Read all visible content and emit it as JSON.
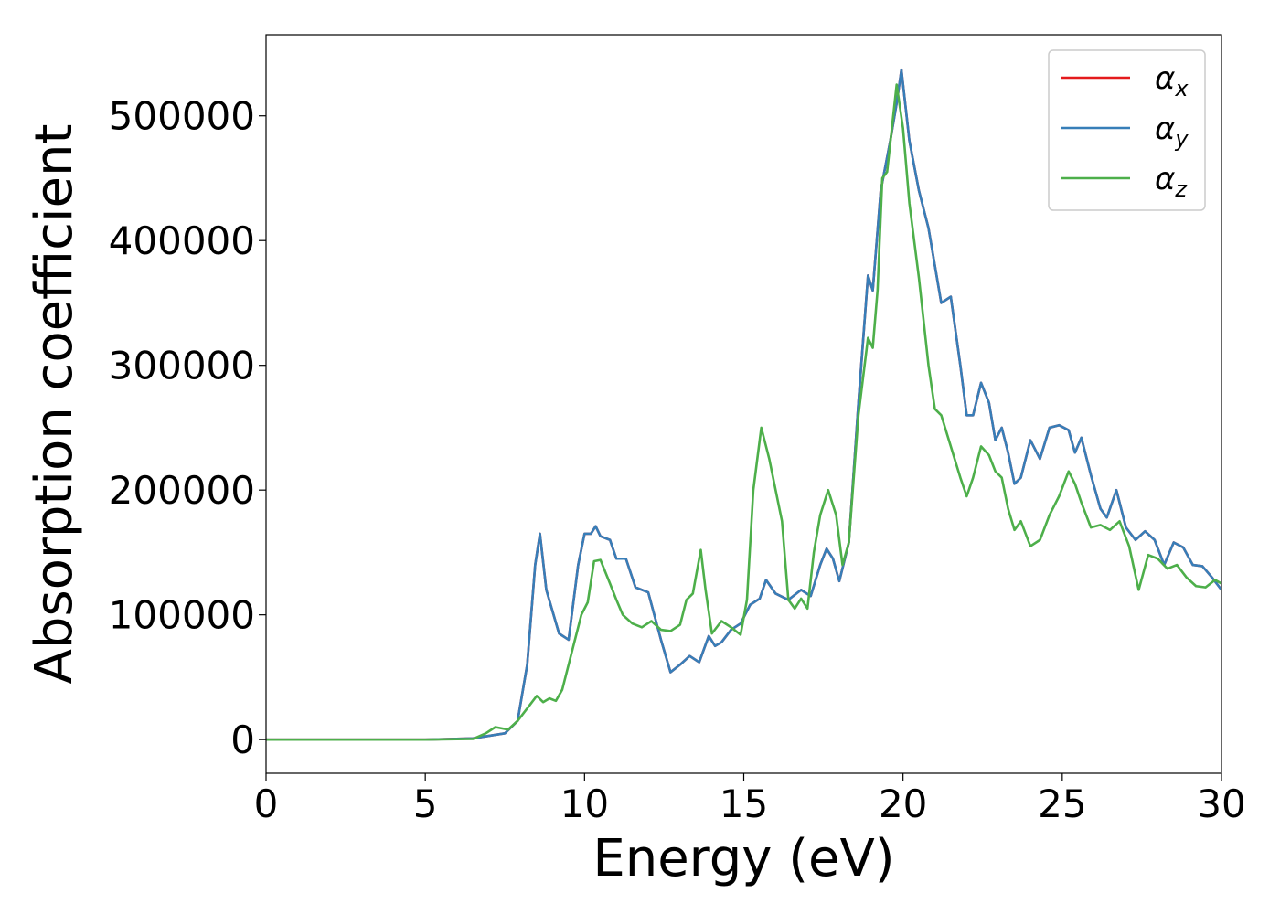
{
  "chart_data": {
    "type": "line",
    "title": "",
    "xlabel": "Energy (eV)",
    "ylabel": "Absorption coefficient",
    "xlim": [
      0,
      30
    ],
    "ylim": [
      -27000,
      565000
    ],
    "xticks": [
      0,
      5,
      10,
      15,
      20,
      25,
      30
    ],
    "yticks": [
      0,
      100000,
      200000,
      300000,
      400000,
      500000
    ],
    "grid": false,
    "legend_position": "top-right",
    "series": [
      {
        "name": "α_x",
        "legend_symbol": "α",
        "legend_sub": "x",
        "color": "#e41a1c",
        "x": [
          0,
          5,
          6.5,
          7.5,
          7.9,
          8.2,
          8.45,
          8.6,
          8.8,
          9.2,
          9.5,
          9.8,
          10.0,
          10.2,
          10.35,
          10.5,
          10.8,
          11.0,
          11.3,
          11.6,
          12.0,
          12.4,
          12.7,
          13.0,
          13.3,
          13.6,
          13.9,
          14.1,
          14.3,
          14.6,
          14.9,
          15.2,
          15.5,
          15.7,
          16.0,
          16.4,
          16.8,
          17.1,
          17.4,
          17.6,
          17.8,
          18.0,
          18.3,
          18.6,
          18.9,
          19.05,
          19.3,
          19.6,
          19.8,
          19.95,
          20.2,
          20.5,
          20.8,
          21.0,
          21.2,
          21.5,
          21.8,
          22.0,
          22.2,
          22.45,
          22.7,
          22.9,
          23.1,
          23.3,
          23.5,
          23.7,
          24.0,
          24.3,
          24.6,
          24.9,
          25.2,
          25.4,
          25.6,
          25.9,
          26.2,
          26.4,
          26.7,
          27.0,
          27.3,
          27.6,
          27.9,
          28.2,
          28.5,
          28.8,
          29.1,
          29.4,
          29.7,
          30
        ],
        "y": [
          0,
          0,
          1000,
          5000,
          15000,
          60000,
          140000,
          165000,
          120000,
          85000,
          80000,
          140000,
          165000,
          165000,
          171000,
          163000,
          160000,
          145000,
          145000,
          122000,
          118000,
          80000,
          54000,
          60000,
          67000,
          62000,
          83000,
          75000,
          78000,
          88000,
          93000,
          108000,
          113000,
          128000,
          117000,
          112000,
          120000,
          115000,
          140000,
          153000,
          145000,
          127000,
          158000,
          270000,
          372000,
          360000,
          440000,
          480000,
          510000,
          537000,
          480000,
          440000,
          410000,
          380000,
          350000,
          355000,
          300000,
          260000,
          260000,
          286000,
          270000,
          240000,
          250000,
          230000,
          205000,
          210000,
          240000,
          225000,
          250000,
          252000,
          248000,
          230000,
          242000,
          212000,
          185000,
          178000,
          200000,
          170000,
          160000,
          167000,
          160000,
          140000,
          158000,
          154000,
          140000,
          139000,
          130000,
          120000
        ]
      },
      {
        "name": "α_y",
        "legend_symbol": "α",
        "legend_sub": "y",
        "color": "#377eb8",
        "x": [
          0,
          5,
          6.5,
          7.5,
          7.9,
          8.2,
          8.45,
          8.6,
          8.8,
          9.2,
          9.5,
          9.8,
          10.0,
          10.2,
          10.35,
          10.5,
          10.8,
          11.0,
          11.3,
          11.6,
          12.0,
          12.4,
          12.7,
          13.0,
          13.3,
          13.6,
          13.9,
          14.1,
          14.3,
          14.6,
          14.9,
          15.2,
          15.5,
          15.7,
          16.0,
          16.4,
          16.8,
          17.1,
          17.4,
          17.6,
          17.8,
          18.0,
          18.3,
          18.6,
          18.9,
          19.05,
          19.3,
          19.6,
          19.8,
          19.95,
          20.2,
          20.5,
          20.8,
          21.0,
          21.2,
          21.5,
          21.8,
          22.0,
          22.2,
          22.45,
          22.7,
          22.9,
          23.1,
          23.3,
          23.5,
          23.7,
          24.0,
          24.3,
          24.6,
          24.9,
          25.2,
          25.4,
          25.6,
          25.9,
          26.2,
          26.4,
          26.7,
          27.0,
          27.3,
          27.6,
          27.9,
          28.2,
          28.5,
          28.8,
          29.1,
          29.4,
          29.7,
          30
        ],
        "y": [
          0,
          0,
          1000,
          5000,
          15000,
          60000,
          140000,
          165000,
          120000,
          85000,
          80000,
          140000,
          165000,
          165000,
          171000,
          163000,
          160000,
          145000,
          145000,
          122000,
          118000,
          80000,
          54000,
          60000,
          67000,
          62000,
          83000,
          75000,
          78000,
          88000,
          93000,
          108000,
          113000,
          128000,
          117000,
          112000,
          120000,
          115000,
          140000,
          153000,
          145000,
          127000,
          158000,
          270000,
          372000,
          360000,
          440000,
          480000,
          510000,
          537000,
          480000,
          440000,
          410000,
          380000,
          350000,
          355000,
          300000,
          260000,
          260000,
          286000,
          270000,
          240000,
          250000,
          230000,
          205000,
          210000,
          240000,
          225000,
          250000,
          252000,
          248000,
          230000,
          242000,
          212000,
          185000,
          178000,
          200000,
          170000,
          160000,
          167000,
          160000,
          140000,
          158000,
          154000,
          140000,
          139000,
          130000,
          120000
        ]
      },
      {
        "name": "α_z",
        "legend_symbol": "α",
        "legend_sub": "z",
        "color": "#4daf4a",
        "x": [
          0,
          5,
          6.5,
          6.9,
          7.2,
          7.4,
          7.6,
          7.9,
          8.2,
          8.5,
          8.7,
          8.9,
          9.1,
          9.3,
          9.6,
          9.9,
          10.1,
          10.3,
          10.5,
          10.8,
          11.0,
          11.2,
          11.5,
          11.8,
          12.1,
          12.4,
          12.7,
          13.0,
          13.2,
          13.4,
          13.65,
          13.8,
          14.0,
          14.3,
          14.6,
          14.9,
          15.1,
          15.3,
          15.55,
          15.8,
          16.0,
          16.2,
          16.4,
          16.6,
          16.8,
          17.0,
          17.2,
          17.4,
          17.65,
          17.9,
          18.1,
          18.3,
          18.6,
          18.9,
          19.05,
          19.2,
          19.35,
          19.5,
          19.8,
          20.0,
          20.2,
          20.5,
          20.8,
          21.0,
          21.2,
          21.5,
          21.8,
          22.0,
          22.2,
          22.45,
          22.7,
          22.9,
          23.1,
          23.3,
          23.5,
          23.7,
          24.0,
          24.3,
          24.6,
          24.9,
          25.2,
          25.4,
          25.6,
          25.9,
          26.2,
          26.5,
          26.8,
          27.1,
          27.4,
          27.7,
          28.0,
          28.3,
          28.6,
          28.9,
          29.2,
          29.5,
          29.8,
          30
        ],
        "y": [
          0,
          0,
          500,
          5000,
          10000,
          9000,
          8000,
          15000,
          25000,
          35000,
          30000,
          33000,
          31000,
          40000,
          70000,
          100000,
          110000,
          143000,
          144000,
          125000,
          112000,
          100000,
          93000,
          90000,
          95000,
          88000,
          87000,
          92000,
          112000,
          117000,
          152000,
          120000,
          85000,
          95000,
          90000,
          84000,
          112000,
          200000,
          250000,
          225000,
          200000,
          175000,
          112000,
          105000,
          113000,
          105000,
          150000,
          180000,
          200000,
          180000,
          140000,
          158000,
          260000,
          322000,
          314000,
          360000,
          450000,
          455000,
          525000,
          490000,
          430000,
          370000,
          300000,
          265000,
          260000,
          235000,
          210000,
          195000,
          210000,
          235000,
          228000,
          215000,
          210000,
          185000,
          168000,
          175000,
          155000,
          160000,
          180000,
          195000,
          215000,
          205000,
          190000,
          170000,
          172000,
          168000,
          175000,
          155000,
          120000,
          148000,
          145000,
          137000,
          140000,
          130000,
          123000,
          122000,
          128000,
          125000
        ]
      }
    ]
  }
}
